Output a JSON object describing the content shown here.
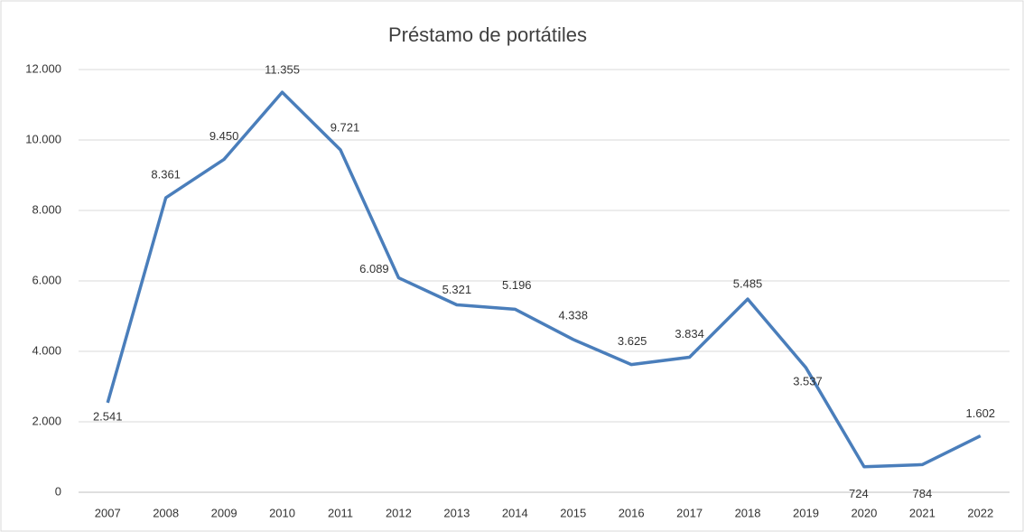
{
  "chart_data": {
    "type": "line",
    "title": "Préstamo de portátiles",
    "categories": [
      "2007",
      "2008",
      "2009",
      "2010",
      "2011",
      "2012",
      "2013",
      "2014",
      "2015",
      "2016",
      "2017",
      "2018",
      "2019",
      "2020",
      "2021",
      "2022"
    ],
    "series": [
      {
        "color": "#4a7ebb",
        "values": [
          2541,
          8361,
          9450,
          11355,
          9721,
          6089,
          5321,
          5196,
          4338,
          3625,
          3834,
          5485,
          3537,
          724,
          784,
          1602
        ],
        "value_labels": [
          "2.541",
          "8.361",
          "9.450",
          "11.355",
          "9.721",
          "6.089",
          "5.321",
          "5.196",
          "4.338",
          "3.625",
          "3.834",
          "5.485",
          "3.537",
          "724",
          "784",
          "1.602"
        ]
      }
    ],
    "ylim": [
      0,
      12000
    ],
    "yticks": [
      0,
      {
        "value": 2000,
        "label": "2.000"
      },
      {
        "value": 4000,
        "label": "4.000"
      },
      {
        "value": 6000,
        "label": "6.000"
      },
      {
        "value": 8000,
        "label": "8.000"
      },
      {
        "value": 10000,
        "label": "10.000"
      },
      {
        "value": 12000,
        "label": "12.000"
      }
    ],
    "grid": true
  }
}
